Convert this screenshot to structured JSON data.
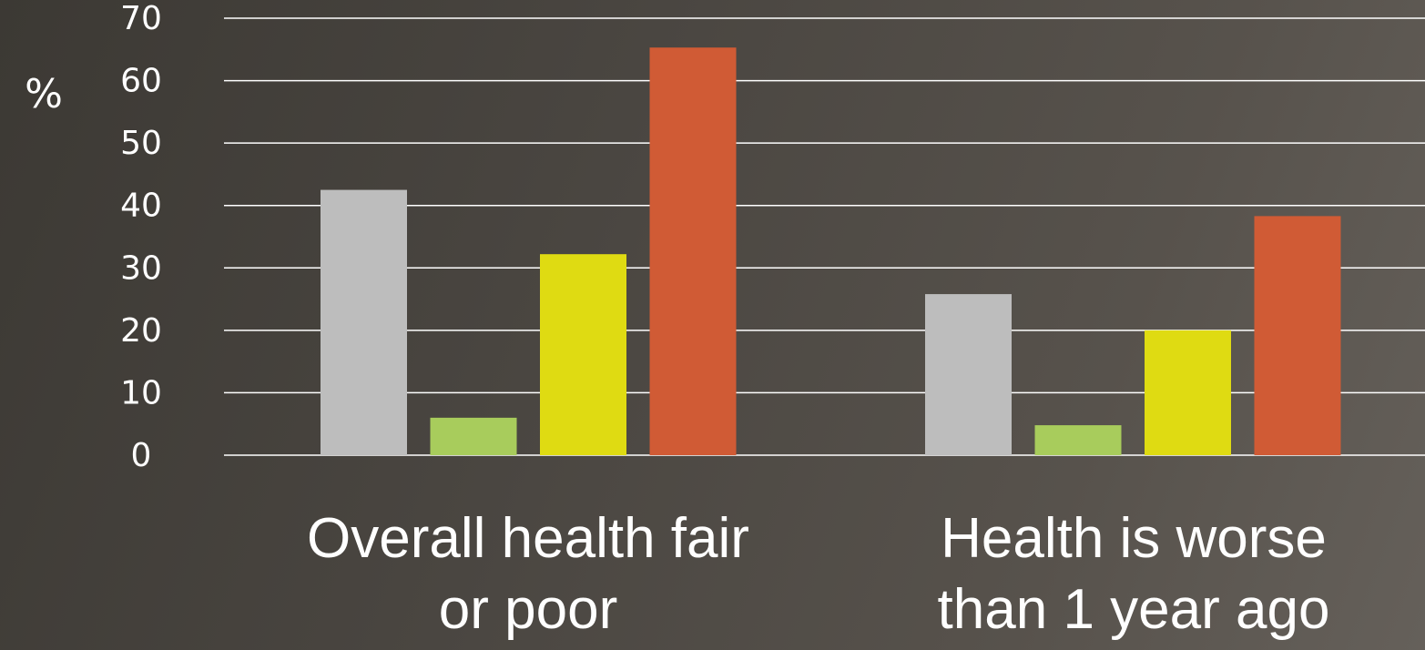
{
  "chart_data": {
    "type": "bar",
    "title": "",
    "xlabel": "",
    "ylabel": "%",
    "ylim": [
      0,
      70
    ],
    "yticks": [
      0,
      10,
      20,
      30,
      40,
      50,
      60,
      70
    ],
    "grid": true,
    "legend": "none",
    "categories": [
      [
        "Overall health fair",
        "or poor"
      ],
      [
        "Health is worse",
        "than 1 year ago"
      ]
    ],
    "series": [
      {
        "color": "#bdbdbd",
        "values": [
          42.5,
          25.8
        ]
      },
      {
        "color": "#a8cc5c",
        "values": [
          6.0,
          4.8
        ]
      },
      {
        "color": "#dfdb12",
        "values": [
          32.2,
          20.0
        ]
      },
      {
        "color": "#d05b35",
        "values": [
          65.3,
          38.3
        ]
      }
    ]
  }
}
